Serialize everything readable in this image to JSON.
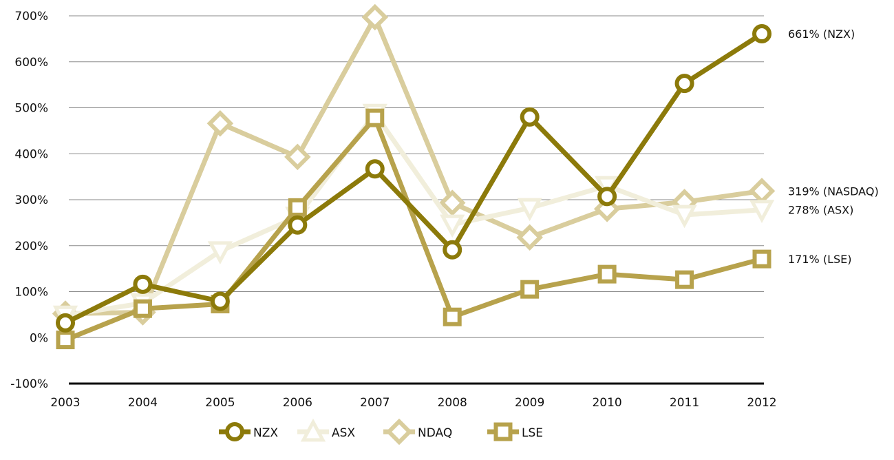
{
  "colors": {
    "NZX": "#8c7a0a",
    "ASX": "#f1eedb",
    "NDAQ": "#d9cd9d",
    "LSE": "#b7a24c",
    "grid": "#8a8a8a",
    "axis": "#000000"
  },
  "chart_data": {
    "type": "line",
    "title": "",
    "xlabel": "",
    "ylabel": "",
    "categories": [
      "2003",
      "2004",
      "2005",
      "2006",
      "2007",
      "2008",
      "2009",
      "2010",
      "2011",
      "2012"
    ],
    "ylim": [
      -100,
      700
    ],
    "yticks": [
      -100,
      0,
      100,
      200,
      300,
      400,
      500,
      600,
      700
    ],
    "ytick_labels": [
      "-100%",
      "0%",
      "100%",
      "200%",
      "300%",
      "400%",
      "500%",
      "600%",
      "700%"
    ],
    "grid": true,
    "legend_position": "bottom",
    "series": [
      {
        "name": "NDAQ",
        "marker": "diamond",
        "values": [
          52,
          55,
          466,
          393,
          697,
          293,
          218,
          280,
          295,
          319
        ]
      },
      {
        "name": "ASX",
        "marker": "triangle-down",
        "values": [
          48,
          75,
          188,
          263,
          487,
          246,
          282,
          330,
          267,
          278
        ]
      },
      {
        "name": "LSE",
        "marker": "square",
        "values": [
          -5,
          63,
          73,
          283,
          478,
          45,
          105,
          138,
          126,
          171
        ]
      },
      {
        "name": "NZX",
        "marker": "circle",
        "values": [
          32,
          116,
          79,
          245,
          367,
          191,
          480,
          307,
          553,
          661
        ]
      }
    ],
    "end_labels": [
      {
        "series": "NZX",
        "text": "661% (NZX)"
      },
      {
        "series": "NDAQ",
        "text": "319% (NASDAQ)"
      },
      {
        "series": "ASX",
        "text": "278% (ASX)"
      },
      {
        "series": "LSE",
        "text": "171% (LSE)"
      }
    ],
    "legend": [
      "NZX",
      "ASX",
      "NDAQ",
      "LSE"
    ]
  }
}
